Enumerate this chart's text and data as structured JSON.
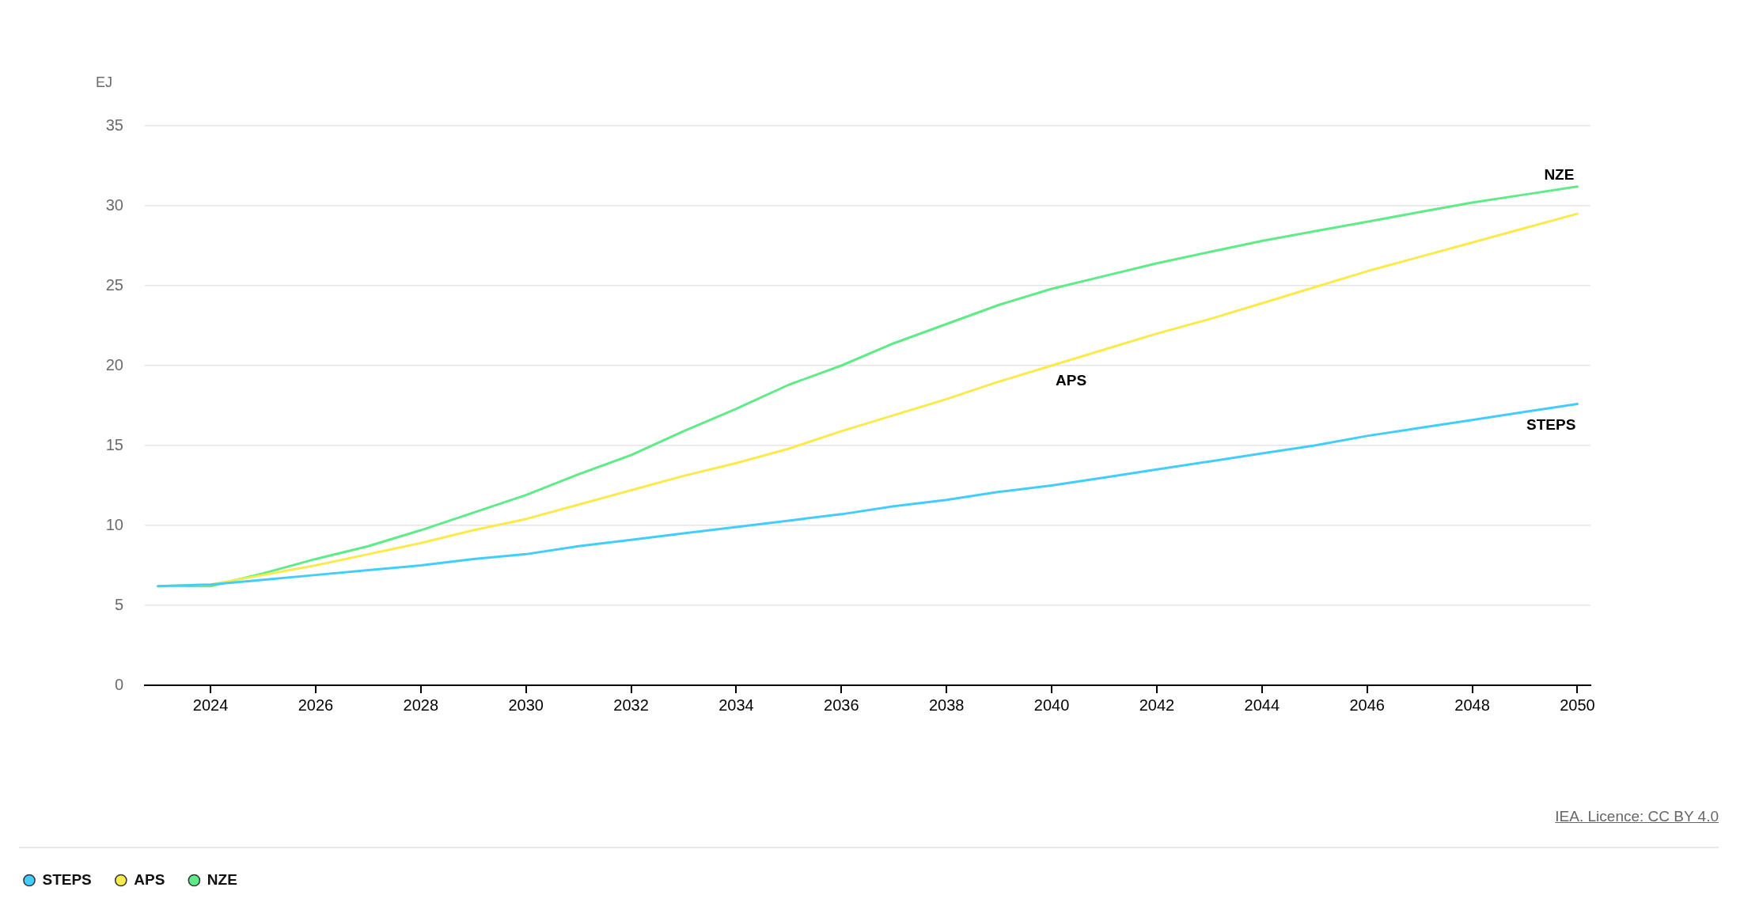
{
  "chart_data": {
    "type": "line",
    "ylabel": "EJ",
    "annotations": [
      "IEA. Licence: CC BY 4.0"
    ],
    "x": [
      2023,
      2024,
      2025,
      2026,
      2027,
      2028,
      2029,
      2030,
      2031,
      2032,
      2033,
      2034,
      2035,
      2036,
      2037,
      2038,
      2039,
      2040,
      2041,
      2042,
      2043,
      2044,
      2045,
      2046,
      2047,
      2048,
      2049,
      2050
    ],
    "xlim": [
      2022.75,
      2050.25
    ],
    "xticks": [
      2024,
      2026,
      2028,
      2030,
      2032,
      2034,
      2036,
      2038,
      2040,
      2042,
      2044,
      2046,
      2048,
      2050
    ],
    "ylim": [
      0,
      35
    ],
    "yticks": [
      0,
      5,
      10,
      15,
      20,
      25,
      30,
      35
    ],
    "grid": "y",
    "legend": "bottom left",
    "series": [
      {
        "name": "STEPS",
        "color": "#42cdfc",
        "values": [
          6.2,
          6.3,
          6.6,
          6.9,
          7.2,
          7.5,
          7.9,
          8.2,
          8.7,
          9.1,
          9.5,
          9.9,
          10.3,
          10.7,
          11.2,
          11.6,
          12.1,
          12.5,
          13.0,
          13.5,
          14.0,
          14.5,
          15.0,
          15.6,
          16.1,
          16.6,
          17.1,
          17.6
        ]
      },
      {
        "name": "APS",
        "color": "#fbea4c",
        "values": [
          6.2,
          6.3,
          6.9,
          7.5,
          8.2,
          8.9,
          9.7,
          10.4,
          11.3,
          12.2,
          13.1,
          13.9,
          14.8,
          15.9,
          16.9,
          17.9,
          19.0,
          20.0,
          21.0,
          22.0,
          22.9,
          23.9,
          24.9,
          25.9,
          26.8,
          27.7,
          28.6,
          29.5
        ]
      },
      {
        "name": "NZE",
        "color": "#5eeb88",
        "values": [
          6.2,
          6.2,
          7.0,
          7.9,
          8.7,
          9.7,
          10.8,
          11.9,
          13.2,
          14.4,
          15.9,
          17.3,
          18.8,
          20.0,
          21.4,
          22.6,
          23.8,
          24.8,
          25.6,
          26.4,
          27.1,
          27.8,
          28.4,
          29.0,
          29.6,
          30.2,
          30.7,
          31.2
        ]
      }
    ]
  }
}
